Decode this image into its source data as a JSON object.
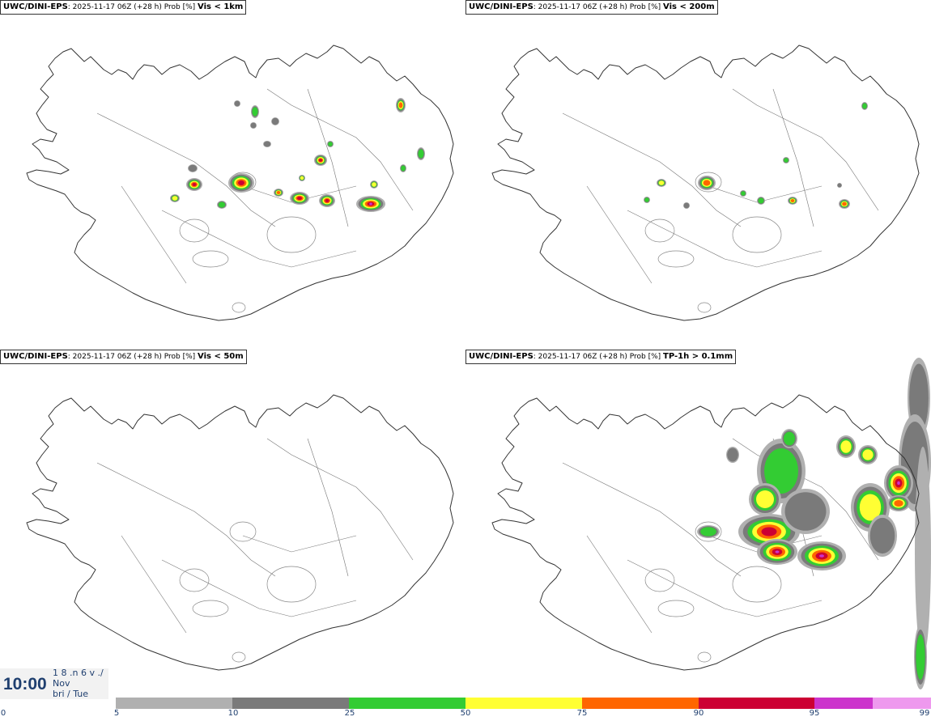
{
  "panels": [
    {
      "source": "UWC/DINI-EPS",
      "info": ": 2025-11-17 06Z (+28 h) Prob [%] ",
      "variable": "Vis < 1km"
    },
    {
      "source": "UWC/DINI-EPS",
      "info": ": 2025-11-17 06Z (+28 h) Prob [%] ",
      "variable": "Vis < 200m"
    },
    {
      "source": "UWC/DINI-EPS",
      "info": ": 2025-11-17 06Z (+28 h) Prob [%] ",
      "variable": "Vis < 50m"
    },
    {
      "source": "UWC/DINI-EPS",
      "info": ": 2025-11-17 06Z (+28 h) Prob [%] ",
      "variable": "TP-1h > 0.1mm"
    }
  ],
  "clock": {
    "time": "10:00",
    "line1": "1 8 .n 6 v ./",
    "line2": "Nov",
    "line3": "bri / Tue"
  },
  "colorbar": {
    "ticks": [
      "0",
      "5",
      "10",
      "25",
      "50",
      "75",
      "90",
      "95",
      "99"
    ],
    "colors": [
      "#b0b0b0",
      "#7a7a7a",
      "#33cc33",
      "#ffff33",
      "#ff6600",
      "#cc0033",
      "#cc33cc",
      "#ee99ee"
    ]
  },
  "palette": {
    "p5": "#b0b0b0",
    "p10": "#7a7a7a",
    "p25": "#33cc33",
    "p50": "#ffff33",
    "p75": "#ff6600",
    "p90": "#cc0033",
    "p95": "#cc33cc"
  }
}
